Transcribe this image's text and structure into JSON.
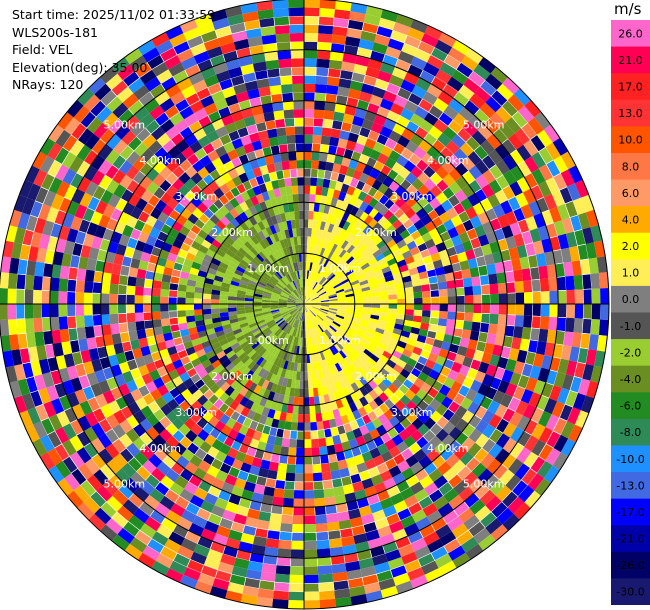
{
  "info": {
    "start_time": "Start time: 2025/11/02 01:33:59",
    "instrument": "WLS200s-181",
    "field": "Field: VEL",
    "elevation": "Elevation(deg): 35.00",
    "nrays": "NRays: 120"
  },
  "colorbar": {
    "unit": "m/s",
    "ticks": [
      "26.0",
      "21.0",
      "17.0",
      "13.0",
      "10.0",
      "8.0",
      "6.0",
      "4.0",
      "2.0",
      "1.0",
      "0.0",
      "-1.0",
      "-2.0",
      "-4.0",
      "-6.0",
      "-8.0",
      "-10.0",
      "-13.0",
      "-17.0",
      "-21.0",
      "-26.0",
      "-30.0"
    ],
    "colors": [
      "#ff66cc",
      "#ff0055",
      "#ff2222",
      "#ff3333",
      "#ff5500",
      "#ff7744",
      "#ff9966",
      "#ffaa00",
      "#ffff00",
      "#ffee55",
      "#7f7f7f",
      "#555555",
      "#9acd32",
      "#6b8e23",
      "#228b22",
      "#2e8b57",
      "#1e90ff",
      "#4169e1",
      "#0000ff",
      "#0000aa",
      "#000066",
      "#191970"
    ]
  },
  "chart_data": {
    "type": "heatmap",
    "projection": "polar-ppi",
    "field": "VEL",
    "units": "m/s",
    "nrays": 120,
    "elevation_deg": 35.0,
    "range_rings_km": [
      1,
      2,
      3,
      4,
      5
    ],
    "ring_labels": [
      "1.00km",
      "2.00km",
      "3.00km",
      "4.00km",
      "5.00km"
    ],
    "max_range_km": 6.0,
    "crosshair": true,
    "color_range": [
      -30,
      30
    ],
    "pattern": "near-range: negative/olive-green to the west, positive/yellow to the east; beyond ~2.5 km noisy random velocities spanning full color scale"
  }
}
